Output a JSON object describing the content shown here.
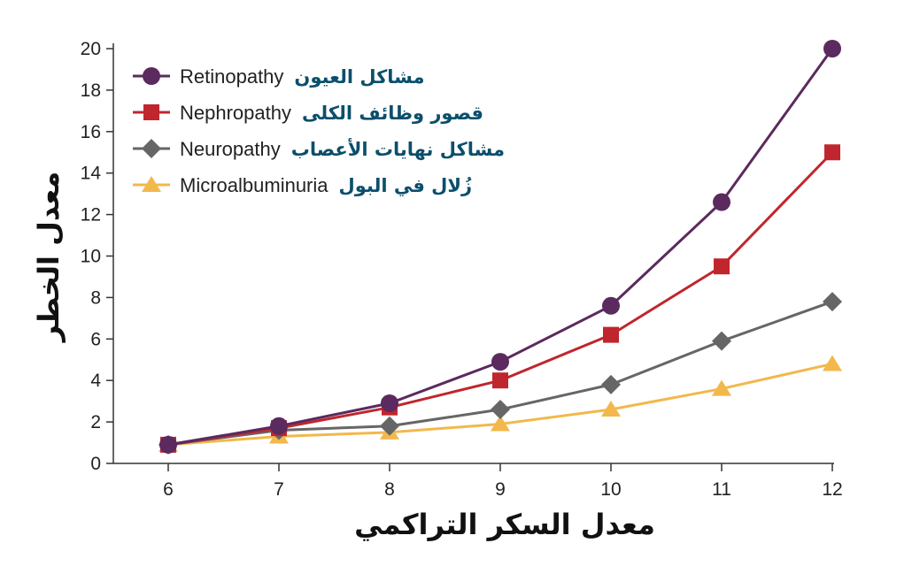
{
  "chart_data": {
    "type": "line",
    "xlabel": "معدل السكر التراكمي",
    "ylabel": "معدل الخطر",
    "x": [
      6,
      7,
      8,
      9,
      10,
      11,
      12
    ],
    "xlim": [
      5.5,
      12
    ],
    "ylim": [
      0,
      20
    ],
    "x_ticks": [
      "6",
      "7",
      "8",
      "9",
      "10",
      "11",
      "12"
    ],
    "y_ticks": [
      "0",
      "2",
      "4",
      "6",
      "8",
      "10",
      "12",
      "14",
      "16",
      "18",
      "20"
    ],
    "grid": false,
    "legend_position": "top-left",
    "series": [
      {
        "name": "Retinopathy",
        "name_ar": "مشاكل العيون",
        "marker": "circle",
        "color": "#5b2a5e",
        "values": [
          0.9,
          1.8,
          2.9,
          4.9,
          7.6,
          12.6,
          20.0
        ]
      },
      {
        "name": "Nephropathy",
        "name_ar": "قصور وظائف الكلى",
        "marker": "square",
        "color": "#c0262d",
        "values": [
          0.9,
          1.7,
          2.7,
          4.0,
          6.2,
          9.5,
          15.0
        ]
      },
      {
        "name": "Neuropathy",
        "name_ar": "مشاكل نهايات الأعصاب",
        "marker": "diamond",
        "color": "#666666",
        "values": [
          0.9,
          1.6,
          1.8,
          2.6,
          3.8,
          5.9,
          7.8
        ]
      },
      {
        "name": "Microalbuminuria",
        "name_ar": "زُلال في البول",
        "marker": "triangle",
        "color": "#f2b84b",
        "values": [
          0.9,
          1.3,
          1.5,
          1.9,
          2.6,
          3.6,
          4.8
        ]
      }
    ]
  }
}
